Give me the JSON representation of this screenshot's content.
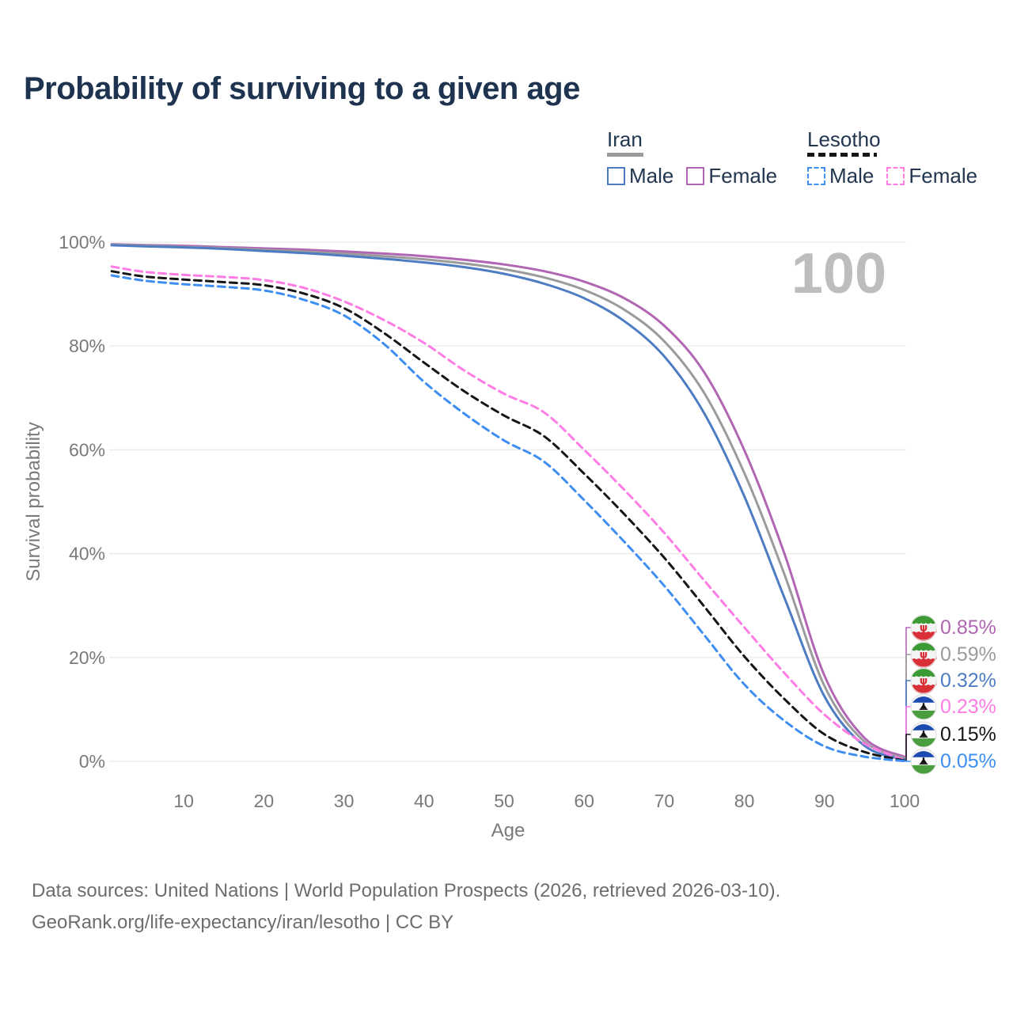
{
  "title": "Probability of surviving to a given age",
  "watermark_age": "100",
  "legend": {
    "groups": [
      {
        "name": "Iran",
        "line_style": "solid",
        "underline_color": "#9b9b9b",
        "items": [
          {
            "label": "Male",
            "color": "#4d7cc3"
          },
          {
            "label": "Female",
            "color": "#b166b4"
          }
        ]
      },
      {
        "name": "Lesotho",
        "line_style": "dashed",
        "underline_color": "#161616",
        "items": [
          {
            "label": "Male",
            "color": "#3e8ef2"
          },
          {
            "label": "Female",
            "color": "#ff7ce5"
          }
        ]
      }
    ]
  },
  "chart_data": {
    "type": "line",
    "xlabel": "Age",
    "ylabel": "Survival probability",
    "xlim": [
      0,
      100
    ],
    "ylim": [
      0,
      100
    ],
    "grid": "horizontal",
    "x_ticks": [
      10,
      20,
      30,
      40,
      50,
      60,
      70,
      80,
      90,
      100
    ],
    "y_ticks": [
      {
        "value": 0,
        "label": "0%"
      },
      {
        "value": 20,
        "label": "20%"
      },
      {
        "value": 40,
        "label": "40%"
      },
      {
        "value": 60,
        "label": "60%"
      },
      {
        "value": 80,
        "label": "80%"
      },
      {
        "value": 100,
        "label": "100%"
      }
    ],
    "ages": [
      1,
      5,
      10,
      15,
      20,
      25,
      30,
      35,
      40,
      45,
      50,
      55,
      60,
      65,
      70,
      75,
      80,
      85,
      90,
      95,
      100
    ],
    "series": [
      {
        "name": "Iran Female",
        "country": "iran",
        "sex": "female",
        "style": "solid",
        "color": "#b166b4",
        "end_label": "0.85%",
        "values": [
          99.6,
          99.45,
          99.3,
          99.05,
          98.8,
          98.55,
          98.2,
          97.8,
          97.3,
          96.6,
          95.7,
          94.4,
          92.4,
          89.2,
          83.9,
          74.9,
          59.9,
          40.0,
          16.5,
          4.5,
          0.85
        ]
      },
      {
        "name": "Iran Both sexes",
        "country": "iran",
        "sex": "both",
        "style": "solid",
        "color": "#9b9b9b",
        "end_label": "0.59%",
        "values": [
          99.5,
          99.35,
          99.1,
          98.85,
          98.5,
          98.2,
          97.8,
          97.3,
          96.7,
          95.9,
          94.8,
          93.2,
          90.8,
          87.0,
          80.9,
          70.9,
          55.5,
          36.0,
          14.5,
          3.8,
          0.59
        ]
      },
      {
        "name": "Iran Male",
        "country": "iran",
        "sex": "male",
        "style": "solid",
        "color": "#4d7cc3",
        "end_label": "0.32%",
        "values": [
          99.4,
          99.2,
          99.0,
          98.7,
          98.3,
          97.9,
          97.4,
          96.8,
          96.1,
          95.2,
          93.9,
          92.0,
          89.2,
          84.8,
          78.0,
          67.0,
          51.0,
          31.5,
          12.5,
          3.0,
          0.32
        ]
      },
      {
        "name": "Lesotho Female",
        "country": "lesotho",
        "sex": "female",
        "style": "dashed",
        "color": "#ff7ce5",
        "end_label": "0.23%",
        "values": [
          95.3,
          94.3,
          93.7,
          93.3,
          92.7,
          91.2,
          88.6,
          85.0,
          80.6,
          75.3,
          70.8,
          67.2,
          60.0,
          52.3,
          44.0,
          34.8,
          25.8,
          17.0,
          9.0,
          3.4,
          0.23
        ]
      },
      {
        "name": "Lesotho Both sexes",
        "country": "lesotho",
        "sex": "both",
        "style": "dashed",
        "color": "#161616",
        "end_label": "0.15%",
        "values": [
          94.4,
          93.4,
          92.8,
          92.3,
          91.7,
          90.1,
          87.3,
          82.5,
          76.8,
          71.3,
          66.6,
          62.6,
          55.4,
          47.6,
          39.2,
          29.8,
          20.2,
          12.0,
          5.2,
          1.8,
          0.15
        ]
      },
      {
        "name": "Lesotho Male",
        "country": "lesotho",
        "sex": "male",
        "style": "dashed",
        "color": "#3e8ef2",
        "end_label": "0.05%",
        "values": [
          93.6,
          92.6,
          91.9,
          91.4,
          90.7,
          88.9,
          85.9,
          80.4,
          73.1,
          67.0,
          61.8,
          57.7,
          50.3,
          42.3,
          33.8,
          24.3,
          14.8,
          7.8,
          2.9,
          0.9,
          0.05
        ]
      }
    ]
  },
  "footer": {
    "line1": "Data sources: United Nations | World Population Prospects (2026, retrieved 2026-03-10).",
    "line2": "GeoRank.org/life-expectancy/iran/lesotho | CC BY"
  }
}
